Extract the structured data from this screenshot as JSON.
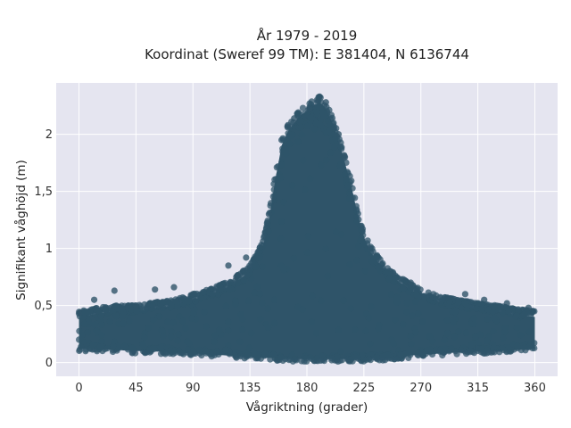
{
  "chart_data": {
    "type": "scatter",
    "title": [
      "År 1979 - 2019",
      "Koordinat (Sweref 99 TM): E 381404, N 6136744"
    ],
    "xlabel": "Vågriktning (grader)",
    "ylabel": "Signifikant våghöjd (m)",
    "xlim": [
      -18,
      378
    ],
    "ylim": [
      -0.12,
      2.45
    ],
    "xticks": [
      0,
      45,
      90,
      135,
      180,
      225,
      270,
      315,
      360
    ],
    "xtick_labels": [
      "0",
      "45",
      "90",
      "135",
      "180",
      "225",
      "270",
      "315",
      "360"
    ],
    "yticks": [
      0,
      0.5,
      1,
      1.5,
      2
    ],
    "ytick_labels": [
      "0",
      "0,5",
      "1",
      "1,5",
      "2"
    ],
    "grid": true,
    "plot_background": "#e5e5f0",
    "marker_color": "#2f5469",
    "series": [
      {
        "envelope": {
          "x": [
            0,
            15,
            30,
            45,
            60,
            75,
            90,
            105,
            120,
            135,
            145,
            150,
            155,
            160,
            165,
            170,
            175,
            180,
            185,
            190,
            195,
            200,
            205,
            210,
            215,
            220,
            225,
            230,
            240,
            250,
            260,
            270,
            285,
            300,
            315,
            330,
            345,
            360
          ],
          "y_max": [
            0.45,
            0.48,
            0.5,
            0.5,
            0.53,
            0.55,
            0.6,
            0.65,
            0.72,
            0.85,
            1.05,
            1.3,
            1.65,
            1.95,
            2.08,
            2.15,
            2.22,
            2.25,
            2.3,
            2.33,
            2.28,
            2.15,
            2.0,
            1.8,
            1.6,
            1.35,
            1.15,
            1.02,
            0.88,
            0.78,
            0.7,
            0.64,
            0.58,
            0.55,
            0.52,
            0.5,
            0.47,
            0.45
          ],
          "y_min": [
            0.1,
            0.1,
            0.09,
            0.08,
            0.08,
            0.07,
            0.06,
            0.05,
            0.04,
            0.03,
            0.02,
            0.02,
            0.02,
            0.01,
            0.01,
            0.01,
            0.01,
            0.01,
            0.01,
            0.01,
            0.01,
            0.01,
            0.01,
            0.01,
            0.01,
            0.01,
            0.01,
            0.02,
            0.02,
            0.03,
            0.04,
            0.05,
            0.06,
            0.07,
            0.08,
            0.08,
            0.09,
            0.1
          ]
        },
        "points": [
          {
            "x": 190,
            "y": 2.33
          },
          {
            "x": 188,
            "y": 2.3
          },
          {
            "x": 195,
            "y": 2.28
          },
          {
            "x": 182,
            "y": 2.22
          },
          {
            "x": 170,
            "y": 2.14
          },
          {
            "x": 165,
            "y": 2.08
          },
          {
            "x": 160,
            "y": 1.95
          },
          {
            "x": 205,
            "y": 2.0
          },
          {
            "x": 210,
            "y": 1.8
          },
          {
            "x": 150,
            "y": 1.3
          },
          {
            "x": 230,
            "y": 1.0
          },
          {
            "x": 12,
            "y": 0.55
          },
          {
            "x": 28,
            "y": 0.63
          },
          {
            "x": 60,
            "y": 0.64
          },
          {
            "x": 75,
            "y": 0.66
          },
          {
            "x": 118,
            "y": 0.85
          },
          {
            "x": 132,
            "y": 0.92
          },
          {
            "x": 248,
            "y": 0.79
          },
          {
            "x": 262,
            "y": 0.7
          },
          {
            "x": 305,
            "y": 0.6
          },
          {
            "x": 320,
            "y": 0.55
          },
          {
            "x": 338,
            "y": 0.52
          },
          {
            "x": 355,
            "y": 0.48
          },
          {
            "x": 0,
            "y": 0.43
          },
          {
            "x": 45,
            "y": 0.5
          },
          {
            "x": 90,
            "y": 0.6
          }
        ]
      }
    ]
  }
}
